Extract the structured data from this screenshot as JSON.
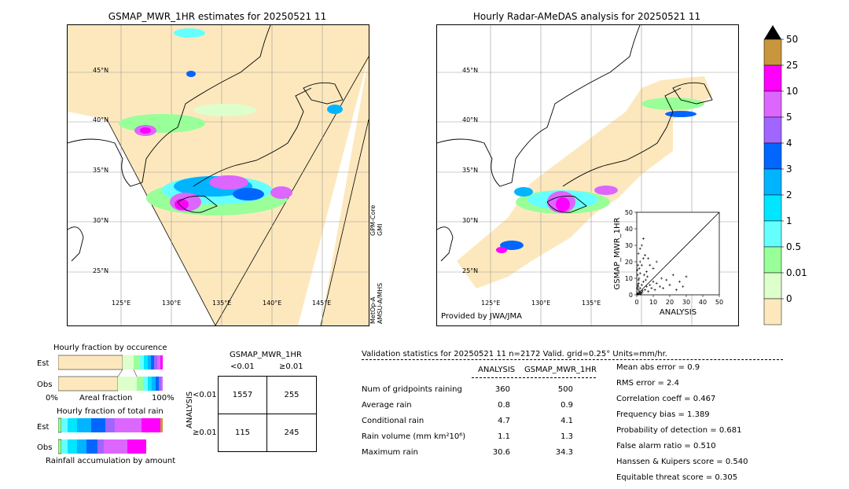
{
  "left_map": {
    "title": "GSMAP_MWR_1HR estimates for 20250521 11",
    "lat_labels": [
      "45°N",
      "40°N",
      "35°N",
      "30°N",
      "25°N"
    ],
    "lon_labels": [
      "125°E",
      "130°E",
      "135°E",
      "140°E",
      "145°E"
    ],
    "side_label_top": "GPM-Core\nGMI",
    "side_label_bottom": "MetOp-A\nAMSU-A/MHS"
  },
  "right_map": {
    "title": "Hourly Radar-AMeDAS analysis for 20250521 11",
    "lat_labels": [
      "45°N",
      "40°N",
      "35°N",
      "30°N",
      "25°N"
    ],
    "lon_labels": [
      "125°E",
      "130°E",
      "135°E"
    ],
    "credit": "Provided by JWA/JMA"
  },
  "colorbar": {
    "labels": [
      "50",
      "25",
      "10",
      "5",
      "4",
      "3",
      "2",
      "1",
      "0.5",
      "0.01",
      "0"
    ],
    "colors": [
      "#c8963c",
      "#ff00ff",
      "#dd66ff",
      "#a066ff",
      "#0066ff",
      "#00b4ff",
      "#00e6ff",
      "#66ffff",
      "#99ff99",
      "#ddffcc",
      "#fde8bd"
    ]
  },
  "chart_data": [
    {
      "type": "scatter",
      "xlabel": "ANALYSIS",
      "ylabel": "GSMAP_MWR_1HR",
      "xlim": [
        0,
        50
      ],
      "ylim": [
        0,
        50
      ],
      "xticks": [
        "0",
        "10",
        "20",
        "30",
        "40",
        "50"
      ],
      "yticks": [
        "0",
        "10",
        "20",
        "30",
        "40",
        "50"
      ],
      "points": [
        [
          0.5,
          1
        ],
        [
          1,
          3
        ],
        [
          1.5,
          2
        ],
        [
          2,
          4
        ],
        [
          2.5,
          1.5
        ],
        [
          3,
          6
        ],
        [
          3.5,
          2.5
        ],
        [
          4,
          8
        ],
        [
          1,
          9
        ],
        [
          0.5,
          12
        ],
        [
          2,
          13
        ],
        [
          1.5,
          16
        ],
        [
          3,
          18
        ],
        [
          2,
          20
        ],
        [
          4,
          22
        ],
        [
          1,
          25
        ],
        [
          5,
          3
        ],
        [
          6,
          5
        ],
        [
          7,
          2
        ],
        [
          8,
          6
        ],
        [
          9,
          4
        ],
        [
          10,
          8
        ],
        [
          11,
          3
        ],
        [
          12,
          7
        ],
        [
          14,
          5
        ],
        [
          15,
          10
        ],
        [
          16,
          4
        ],
        [
          18,
          9
        ],
        [
          20,
          6
        ],
        [
          22,
          12
        ],
        [
          24,
          3
        ],
        [
          26,
          8
        ],
        [
          28,
          5
        ],
        [
          30,
          11
        ],
        [
          6,
          14
        ],
        [
          8,
          18
        ],
        [
          10,
          16
        ],
        [
          3,
          30
        ],
        [
          4,
          34
        ],
        [
          2,
          28
        ],
        [
          5,
          24
        ],
        [
          7,
          22
        ],
        [
          12,
          20
        ],
        [
          0.2,
          0.5
        ],
        [
          0.8,
          0.3
        ],
        [
          1.2,
          0.8
        ],
        [
          1.8,
          1.2
        ],
        [
          2.2,
          0.4
        ],
        [
          2.8,
          0.9
        ],
        [
          3.3,
          1.6
        ],
        [
          0.3,
          4
        ],
        [
          0.6,
          6
        ],
        [
          0.9,
          5
        ],
        [
          1.1,
          7
        ],
        [
          1.4,
          10
        ],
        [
          0.4,
          15
        ],
        [
          0.7,
          18
        ],
        [
          4.5,
          12
        ],
        [
          5.5,
          9
        ],
        [
          6.5,
          11
        ]
      ]
    },
    {
      "type": "bar",
      "title": "Hourly fraction by occurence",
      "categories": [
        "Est",
        "Obs"
      ],
      "xticks": [
        "0%",
        "Areal fraction",
        "100%"
      ]
    },
    {
      "type": "bar",
      "title": "Hourly fraction of total rain",
      "categories": [
        "Est",
        "Obs"
      ],
      "footer": "Rainfall accumulation by amount"
    }
  ],
  "contingency": {
    "title": "GSMAP_MWR_1HR",
    "col_headers": [
      "<0.01",
      "≥0.01"
    ],
    "row_axis_label": "ANALYSIS",
    "row_headers": [
      "<0.01",
      "≥0.01"
    ],
    "cells": [
      [
        "1557",
        "255"
      ],
      [
        "115",
        "245"
      ]
    ]
  },
  "validation": {
    "header": "Validation statistics for 20250521 11  n=2172 Valid. grid=0.25° Units=mm/hr.",
    "col_headers": [
      "ANALYSIS",
      "GSMAP_MWR_1HR"
    ],
    "rows": [
      {
        "label": "Num of gridpoints raining",
        "a": "360",
        "b": "500"
      },
      {
        "label": "Average rain",
        "a": "0.8",
        "b": "0.9"
      },
      {
        "label": "Conditional rain",
        "a": "4.7",
        "b": "4.1"
      },
      {
        "label": "Rain volume (mm km²10⁶)",
        "a": "1.1",
        "b": "1.3"
      },
      {
        "label": "Maximum rain",
        "a": "30.6",
        "b": "34.3"
      }
    ],
    "scores": [
      "Mean abs error =    0.9",
      "RMS error =    2.4",
      "Correlation coeff =  0.467",
      "Frequency bias =  1.389",
      "Probability of detection =  0.681",
      "False alarm ratio =  0.510",
      "Hanssen & Kuipers score =  0.540",
      "Equitable threat score =  0.305"
    ]
  }
}
